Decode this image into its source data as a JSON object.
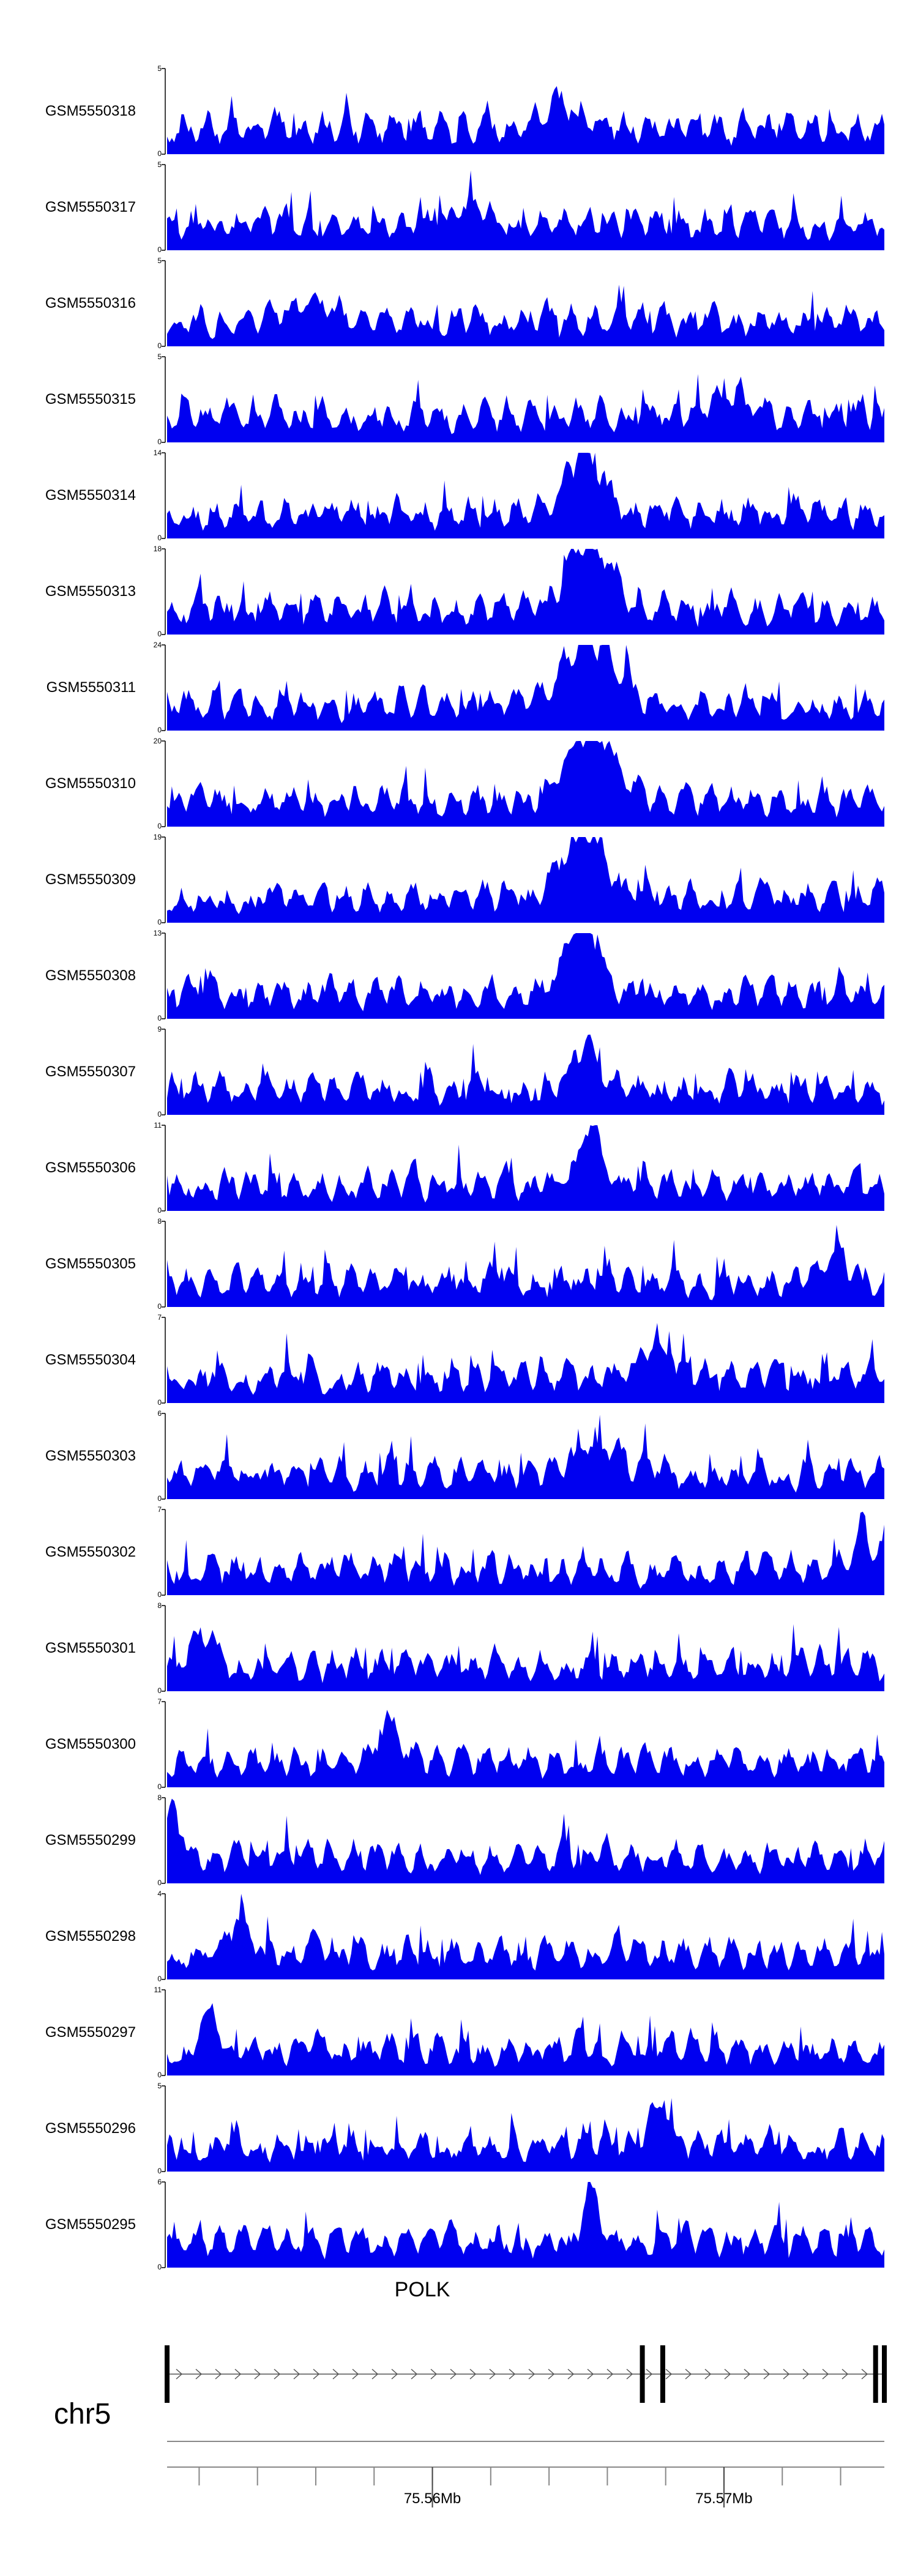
{
  "chart_data": {
    "type": "area",
    "title": "",
    "tracks": [
      {
        "name": "GSM5550318",
        "ymax": "5",
        "ymin": "0",
        "max": 5,
        "peaks": [
          [
            0.55,
            0.35,
            0.04
          ]
        ],
        "seed": 18
      },
      {
        "name": "GSM5550317",
        "ymax": "5",
        "ymin": "0",
        "max": 5,
        "peaks": [
          [
            0.42,
            0.25,
            0.04
          ]
        ],
        "seed": 17
      },
      {
        "name": "GSM5550316",
        "ymax": "5",
        "ymin": "0",
        "max": 5,
        "peaks": [
          [
            0.2,
            0.3,
            0.04
          ]
        ],
        "seed": 16
      },
      {
        "name": "GSM5550315",
        "ymax": "5",
        "ymin": "0",
        "max": 5,
        "peaks": [
          [
            0.78,
            0.3,
            0.04
          ]
        ],
        "seed": 15
      },
      {
        "name": "GSM5550314",
        "ymax": "14",
        "ymin": "0",
        "max": 14,
        "peaks": [
          [
            0.58,
            0.85,
            0.035
          ]
        ],
        "seed": 14
      },
      {
        "name": "GSM5550313",
        "ymax": "18",
        "ymin": "0",
        "max": 18,
        "peaks": [
          [
            0.59,
            0.9,
            0.04
          ]
        ],
        "seed": 13
      },
      {
        "name": "GSM5550311",
        "ymax": "24",
        "ymin": "0",
        "max": 24,
        "peaks": [
          [
            0.59,
            0.9,
            0.05
          ]
        ],
        "seed": 11
      },
      {
        "name": "GSM5550310",
        "ymax": "20",
        "ymin": "0",
        "max": 20,
        "peaks": [
          [
            0.59,
            0.95,
            0.045
          ]
        ],
        "seed": 10
      },
      {
        "name": "GSM5550309",
        "ymax": "19",
        "ymin": "0",
        "max": 19,
        "peaks": [
          [
            0.58,
            0.9,
            0.04
          ]
        ],
        "seed": 9
      },
      {
        "name": "GSM5550308",
        "ymax": "13",
        "ymin": "0",
        "max": 13,
        "peaks": [
          [
            0.58,
            0.9,
            0.035
          ]
        ],
        "seed": 8
      },
      {
        "name": "GSM5550307",
        "ymax": "9",
        "ymin": "0",
        "max": 9,
        "peaks": [
          [
            0.58,
            0.6,
            0.03
          ]
        ],
        "seed": 7
      },
      {
        "name": "GSM5550306",
        "ymax": "11",
        "ymin": "0",
        "max": 11,
        "peaks": [
          [
            0.59,
            0.85,
            0.02
          ]
        ],
        "seed": 6
      },
      {
        "name": "GSM5550305",
        "ymax": "8",
        "ymin": "0",
        "max": 8,
        "peaks": [
          [
            0.93,
            0.5,
            0.02
          ]
        ],
        "seed": 5
      },
      {
        "name": "GSM5550304",
        "ymax": "7",
        "ymin": "0",
        "max": 7,
        "peaks": [
          [
            0.68,
            0.4,
            0.03
          ]
        ],
        "seed": 4
      },
      {
        "name": "GSM5550303",
        "ymax": "6",
        "ymin": "0",
        "max": 6,
        "peaks": [
          [
            0.6,
            0.4,
            0.03
          ]
        ],
        "seed": 3
      },
      {
        "name": "GSM5550302",
        "ymax": "7",
        "ymin": "0",
        "max": 7,
        "peaks": [
          [
            0.97,
            0.5,
            0.02
          ]
        ],
        "seed": 2
      },
      {
        "name": "GSM5550301",
        "ymax": "8",
        "ymin": "0",
        "max": 8,
        "peaks": [
          [
            0.05,
            0.4,
            0.02
          ]
        ],
        "seed": 1
      },
      {
        "name": "GSM5550300",
        "ymax": "7",
        "ymin": "0",
        "max": 7,
        "peaks": [
          [
            0.31,
            0.5,
            0.02
          ]
        ],
        "seed": 100
      },
      {
        "name": "GSM5550299",
        "ymax": "8",
        "ymin": "0",
        "max": 8,
        "peaks": [
          [
            0.01,
            0.7,
            0.015
          ]
        ],
        "seed": 99
      },
      {
        "name": "GSM5550298",
        "ymax": "4",
        "ymin": "0",
        "max": 4,
        "peaks": [
          [
            0.1,
            0.5,
            0.02
          ]
        ],
        "seed": 98
      },
      {
        "name": "GSM5550297",
        "ymax": "11",
        "ymin": "0",
        "max": 11,
        "peaks": [
          [
            0.06,
            0.7,
            0.015
          ]
        ],
        "seed": 97
      },
      {
        "name": "GSM5550296",
        "ymax": "5",
        "ymin": "0",
        "max": 5,
        "peaks": [
          [
            0.69,
            0.5,
            0.02
          ]
        ],
        "seed": 96
      },
      {
        "name": "GSM5550295",
        "ymax": "6",
        "ymin": "0",
        "max": 6,
        "peaks": [
          [
            0.59,
            0.6,
            0.015
          ]
        ],
        "seed": 95
      }
    ],
    "gene": {
      "name": "POLK",
      "strand": "+",
      "start_mb": 75.5509,
      "end_mb": 75.5755,
      "exons_mb": [
        75.5509,
        75.5672,
        75.5679,
        75.5752,
        75.5755
      ]
    },
    "chromosome": "chr5",
    "axis": {
      "range_mb": [
        75.5509,
        75.5755
      ],
      "minor_ticks_mb": [
        75.552,
        75.554,
        75.556,
        75.558,
        75.56,
        75.562,
        75.564,
        75.566,
        75.568,
        75.57,
        75.572,
        75.574
      ],
      "labels": [
        {
          "value_mb": 75.56,
          "text": "75.56Mb"
        },
        {
          "value_mb": 75.57,
          "text": "75.57Mb"
        }
      ]
    },
    "colors": {
      "signal": "#0000f0",
      "axis": "#000000",
      "gene": "#000000"
    }
  }
}
